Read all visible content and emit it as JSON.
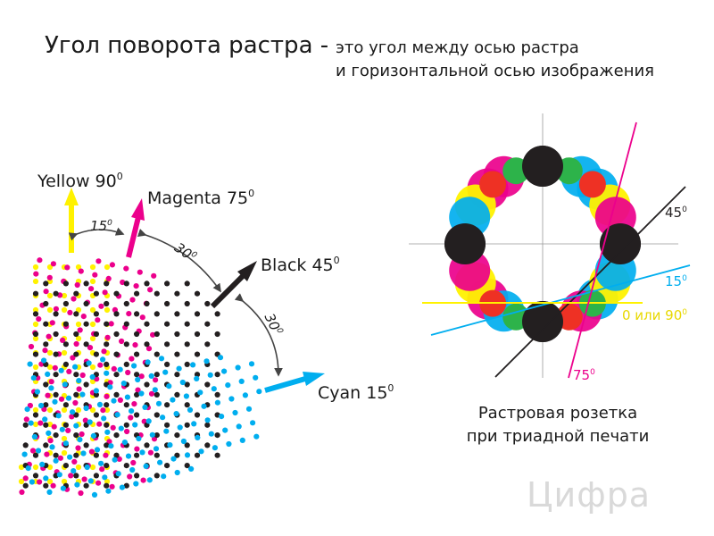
{
  "title": "Угол поворота растра -",
  "subtitle_line1": "это угол между осью растра",
  "subtitle_line2": "и горизонтальной осью изображения",
  "labels": {
    "yellow": "Yellow 90",
    "magenta": "Magenta 75",
    "black": "Black 45",
    "cyan": "Cyan 15",
    "degree_suffix": "0",
    "angle_15": "15",
    "angle_30_top": "30",
    "angle_30_right": "30"
  },
  "rosette_labels": {
    "l45": "45",
    "l15": "15",
    "l0_90": "0 или 90",
    "l75": "75",
    "degree_suffix": "0"
  },
  "caption_line1": "Растровая розетка",
  "caption_line2": "при триадной печати",
  "logo": "Цифра",
  "colors": {
    "yellow": "#fff200",
    "magenta": "#ec008c",
    "black": "#231f20",
    "cyan": "#00aeef"
  }
}
